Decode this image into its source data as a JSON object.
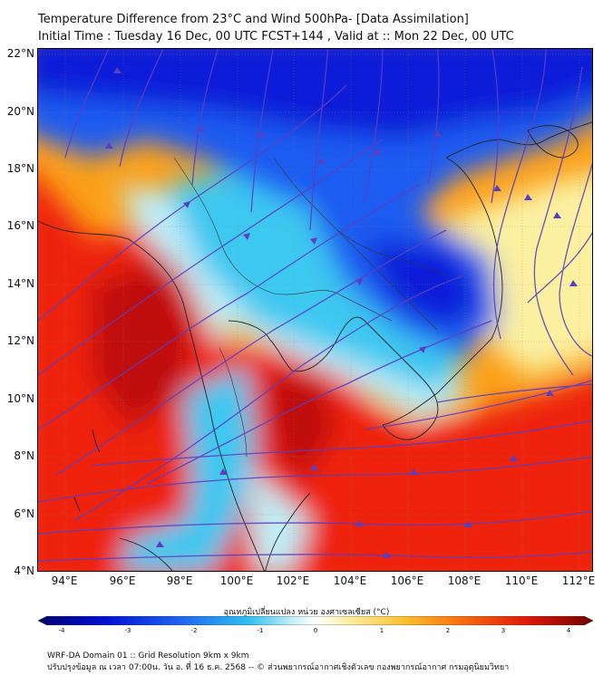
{
  "header": {
    "title_line1": "Temperature Difference from 23°C and Wind 500hPa- [Data Assimilation]",
    "title_line2": "Initial Time : Tuesday 16 Dec, 00 UTC FCST+144 , Valid at ::  Mon 22 Dec, 00 UTC"
  },
  "map": {
    "lat_labels": [
      "22°N",
      "20°N",
      "18°N",
      "16°N",
      "14°N",
      "12°N",
      "10°N",
      "8°N",
      "6°N",
      "4°N"
    ],
    "lon_labels": [
      "94°E",
      "96°E",
      "98°E",
      "100°E",
      "102°E",
      "104°E",
      "106°E",
      "108°E",
      "110°E",
      "112°E"
    ],
    "extent": {
      "lon_min": 93,
      "lon_max": 112.5,
      "lat_min": 4,
      "lat_max": 22.2
    },
    "streamline_color": "#5a3fc0",
    "colors": {
      "deep_blue": "#0a1ed8",
      "blue": "#1e5cf0",
      "cyan": "#3cc8f0",
      "light_cyan": "#bfeef7",
      "pale_yellow": "#fbf0a0",
      "orange": "#fba018",
      "red": "#ee2010",
      "dark_red": "#c01010"
    }
  },
  "colorbar": {
    "title": "อุณหภูมิเปลี่ยนแปลง หน่วย องศาเซลเซียส (°C)",
    "ticks": [
      "-4",
      "-3",
      "-2",
      "-1",
      "0",
      "1",
      "2",
      "3",
      "4"
    ],
    "range": [
      -4,
      4
    ]
  },
  "footer": {
    "line1": "WRF-DA Domain 01 :: Grid Resolution 9km x 9km",
    "line2": "ปรับปรุงข้อมูล ณ เวลา 07:00น. วัน อ. ที่ 16 ธ.ค. 2568 -- © ส่วนพยากรณ์อากาศเชิงตัวเลข กองพยากรณ์อากาศ กรมอุตุนิยมวิทยา"
  }
}
